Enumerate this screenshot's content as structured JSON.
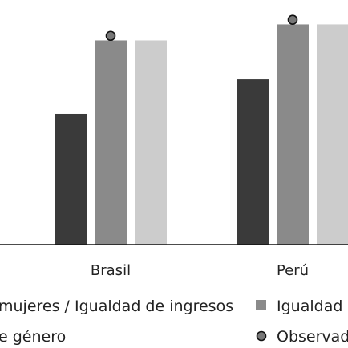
{
  "chart_data": {
    "type": "bar",
    "title": "",
    "xlabel": "",
    "ylabel": "",
    "ylim": [
      0,
      100
    ],
    "categories": [
      "Brasil",
      "Perú"
    ],
    "series": [
      {
        "name": "mujeres / Igualdad de ingresos",
        "color": "#3a3a3a",
        "values": [
          57,
          72
        ]
      },
      {
        "name": "Igualdad",
        "color": "#8a8a8a",
        "values": [
          89,
          96
        ]
      },
      {
        "name": "e género",
        "color": "#cccccc",
        "values": [
          89,
          96
        ]
      }
    ],
    "markers": {
      "name": "Observad",
      "color": "#777777",
      "series_index": 1,
      "values": [
        91,
        98
      ]
    },
    "legend": {
      "placement": "bottom",
      "rows": [
        [
          {
            "label": "mujeres / Igualdad de ingresos",
            "symbol": "none"
          },
          {
            "label": "Igualdad",
            "symbol": "square",
            "color": "#8a8a8a"
          }
        ],
        [
          {
            "label": "e género",
            "symbol": "none"
          },
          {
            "label": "Observad",
            "symbol": "circle",
            "color": "#777777"
          }
        ]
      ]
    }
  }
}
